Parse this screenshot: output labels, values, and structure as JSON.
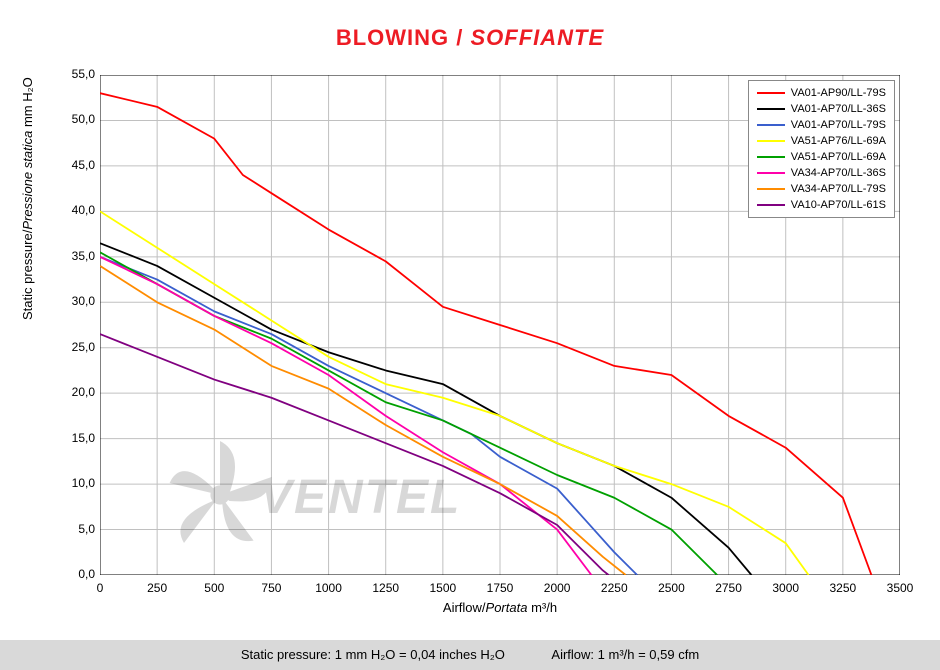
{
  "title_main": "BLOWING",
  "title_sep": " / ",
  "title_ital": "SOFFIANTE",
  "yaxis_plain": "Static pressure/",
  "yaxis_ital": "Pressione statica",
  "yaxis_unit": "  mm H₂O",
  "xaxis_plain": "Airflow/",
  "xaxis_ital": "Portata",
  "xaxis_unit": "  m³/h",
  "footer_left": "Static pressure: 1 mm H₂O = 0,04 inches H₂O",
  "footer_right": "Airflow: 1 m³/h = 0,59 cfm",
  "watermark": "VENTEL",
  "chart": {
    "type": "line",
    "background_color": "#ffffff",
    "grid_color": "#c0c0c0",
    "axis_color": "#000000",
    "xlim": [
      0,
      3500
    ],
    "ylim": [
      0,
      55
    ],
    "xticks": [
      0,
      250,
      500,
      750,
      1000,
      1250,
      1500,
      1750,
      2000,
      2250,
      2500,
      2750,
      3000,
      3250,
      3500
    ],
    "yticks": [
      0,
      5,
      10,
      15,
      20,
      25,
      30,
      35,
      40,
      45,
      50,
      55
    ],
    "ytick_labels": [
      "0,0",
      "5,0",
      "10,0",
      "15,0",
      "20,0",
      "25,0",
      "30,0",
      "35,0",
      "40,0",
      "45,0",
      "50,0",
      "55,0"
    ],
    "line_width": 1.8,
    "series": [
      {
        "label": "VA01-AP90/LL-79S",
        "color": "#ff0000",
        "points": [
          [
            0,
            53
          ],
          [
            250,
            51.5
          ],
          [
            500,
            48
          ],
          [
            625,
            44
          ],
          [
            750,
            42
          ],
          [
            1000,
            38
          ],
          [
            1250,
            34.5
          ],
          [
            1375,
            32
          ],
          [
            1500,
            29.5
          ],
          [
            1750,
            27.5
          ],
          [
            2000,
            25.5
          ],
          [
            2250,
            23
          ],
          [
            2500,
            22
          ],
          [
            2750,
            17.5
          ],
          [
            3000,
            14
          ],
          [
            3250,
            8.5
          ],
          [
            3375,
            0
          ]
        ]
      },
      {
        "label": "VA01-AP70/LL-36S",
        "color": "#000000",
        "points": [
          [
            0,
            36.5
          ],
          [
            250,
            34
          ],
          [
            500,
            30.5
          ],
          [
            750,
            27
          ],
          [
            1000,
            24.5
          ],
          [
            1250,
            22.5
          ],
          [
            1500,
            21
          ],
          [
            1750,
            17.5
          ],
          [
            2000,
            14.5
          ],
          [
            2250,
            12
          ],
          [
            2500,
            8.5
          ],
          [
            2750,
            3
          ],
          [
            2850,
            0
          ]
        ]
      },
      {
        "label": "VA01-AP70/LL-79S",
        "color": "#3a5fcd",
        "points": [
          [
            0,
            35
          ],
          [
            250,
            32.5
          ],
          [
            500,
            29
          ],
          [
            750,
            26.5
          ],
          [
            1000,
            23
          ],
          [
            1250,
            20
          ],
          [
            1500,
            17
          ],
          [
            1625,
            15.5
          ],
          [
            1750,
            13
          ],
          [
            2000,
            9.5
          ],
          [
            2125,
            6
          ],
          [
            2250,
            2.5
          ],
          [
            2350,
            0
          ]
        ]
      },
      {
        "label": "VA51-AP76/LL-69A",
        "color": "#ffff00",
        "points": [
          [
            0,
            40
          ],
          [
            250,
            36
          ],
          [
            500,
            32
          ],
          [
            750,
            28
          ],
          [
            1000,
            24
          ],
          [
            1250,
            21
          ],
          [
            1500,
            19.5
          ],
          [
            1750,
            17.5
          ],
          [
            2000,
            14.5
          ],
          [
            2250,
            12
          ],
          [
            2500,
            10
          ],
          [
            2750,
            7.5
          ],
          [
            3000,
            3.5
          ],
          [
            3100,
            0
          ]
        ]
      },
      {
        "label": "VA51-AP70/LL-69A",
        "color": "#00a000",
        "points": [
          [
            0,
            35.5
          ],
          [
            250,
            32
          ],
          [
            500,
            28.5
          ],
          [
            750,
            26
          ],
          [
            1000,
            22.5
          ],
          [
            1250,
            19
          ],
          [
            1500,
            17
          ],
          [
            1750,
            14
          ],
          [
            2000,
            11
          ],
          [
            2250,
            8.5
          ],
          [
            2500,
            5
          ],
          [
            2700,
            0
          ]
        ]
      },
      {
        "label": "VA34-AP70/LL-36S",
        "color": "#ff00aa",
        "points": [
          [
            0,
            35
          ],
          [
            250,
            32
          ],
          [
            500,
            28.5
          ],
          [
            750,
            25.5
          ],
          [
            1000,
            22
          ],
          [
            1250,
            17.5
          ],
          [
            1500,
            13.5
          ],
          [
            1750,
            10
          ],
          [
            2000,
            5
          ],
          [
            2150,
            0
          ]
        ]
      },
      {
        "label": "VA34-AP70/LL-79S",
        "color": "#ff8c00",
        "points": [
          [
            0,
            34
          ],
          [
            250,
            30
          ],
          [
            500,
            27
          ],
          [
            750,
            23
          ],
          [
            1000,
            20.5
          ],
          [
            1250,
            16.5
          ],
          [
            1500,
            13
          ],
          [
            1750,
            10
          ],
          [
            2000,
            6.5
          ],
          [
            2200,
            2
          ],
          [
            2300,
            0
          ]
        ]
      },
      {
        "label": "VA10-AP70/LL-61S",
        "color": "#800080",
        "points": [
          [
            0,
            26.5
          ],
          [
            250,
            24
          ],
          [
            500,
            21.5
          ],
          [
            750,
            19.5
          ],
          [
            1000,
            17
          ],
          [
            1250,
            14.5
          ],
          [
            1500,
            12
          ],
          [
            1750,
            9
          ],
          [
            2000,
            5.5
          ],
          [
            2200,
            0.5
          ],
          [
            2225,
            0
          ]
        ]
      }
    ]
  }
}
